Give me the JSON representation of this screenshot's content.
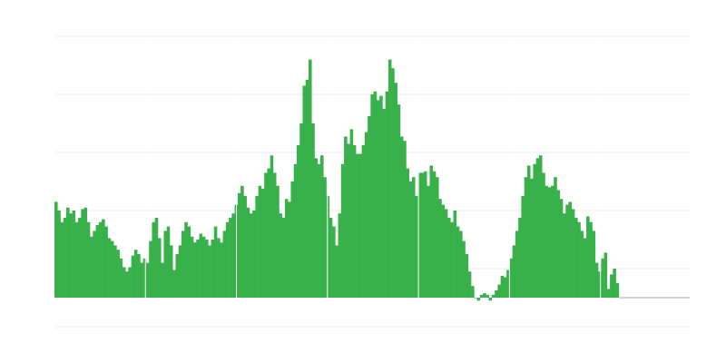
{
  "chart_data": {
    "type": "bar",
    "title": "",
    "xlabel": "",
    "ylabel": "",
    "bar_color": "#39b14b",
    "grid_color": "#eeeeee",
    "baseline_color": "#aaaaaa",
    "grid": true,
    "legend": "none",
    "ylim": [
      -1,
      9
    ],
    "y_gridlines": [
      -1,
      1,
      3,
      5,
      7,
      9
    ],
    "xlim": [
      0,
      215
    ],
    "period_separators_every": 30.8,
    "values": [
      3.3,
      3.0,
      2.6,
      2.75,
      3.1,
      2.9,
      3.0,
      2.6,
      2.75,
      3.05,
      3.1,
      2.6,
      2.1,
      2.3,
      2.5,
      2.6,
      2.7,
      2.45,
      2.05,
      1.95,
      1.8,
      1.65,
      1.35,
      1.05,
      0.9,
      1.05,
      1.45,
      1.65,
      1.5,
      1.2,
      1.35,
      1.2,
      1.95,
      2.6,
      2.75,
      2.05,
      1.2,
      2.3,
      2.45,
      1.8,
      0.95,
      1.5,
      1.8,
      2.3,
      2.6,
      2.45,
      2.1,
      1.9,
      2.0,
      2.2,
      2.1,
      2.0,
      1.8,
      2.0,
      2.45,
      2.05,
      1.9,
      2.3,
      2.6,
      2.75,
      2.9,
      3.2,
      3.6,
      3.85,
      3.5,
      3.1,
      2.9,
      3.0,
      3.5,
      3.85,
      3.75,
      4.3,
      4.45,
      4.9,
      4.3,
      3.85,
      2.9,
      2.75,
      3.4,
      3.3,
      4.0,
      4.6,
      5.25,
      6.0,
      7.3,
      7.5,
      8.2,
      6.0,
      4.8,
      4.6,
      4.9,
      4.15,
      3.5,
      2.75,
      2.45,
      1.8,
      2.9,
      4.6,
      5.55,
      5.3,
      5.8,
      5.25,
      4.95,
      4.95,
      5.25,
      5.7,
      6.25,
      7.0,
      7.1,
      6.8,
      6.95,
      6.5,
      7.1,
      8.2,
      7.9,
      7.4,
      6.65,
      5.55,
      5.4,
      4.45,
      4.0,
      4.15,
      3.5,
      4.3,
      4.3,
      4.35,
      3.85,
      4.55,
      4.35,
      4.15,
      3.4,
      3.2,
      3.05,
      2.75,
      2.6,
      3.0,
      2.45,
      2.3,
      1.95,
      1.5,
      0.9,
      0.4,
      0.0,
      -0.1,
      0.1,
      0.15,
      0.1,
      -0.1,
      0.1,
      0.25,
      0.45,
      0.75,
      0.7,
      0.95,
      1.35,
      1.8,
      2.3,
      2.75,
      3.5,
      4.15,
      4.55,
      4.1,
      4.6,
      4.8,
      4.9,
      4.3,
      3.85,
      3.8,
      3.85,
      4.15,
      3.7,
      3.4,
      2.9,
      3.2,
      3.3,
      3.05,
      2.75,
      2.6,
      2.3,
      2.05,
      2.8,
      2.6,
      2.3,
      1.2,
      0.9,
      1.35,
      1.55,
      0.3,
      0.8,
      1.0,
      0.5
    ]
  }
}
